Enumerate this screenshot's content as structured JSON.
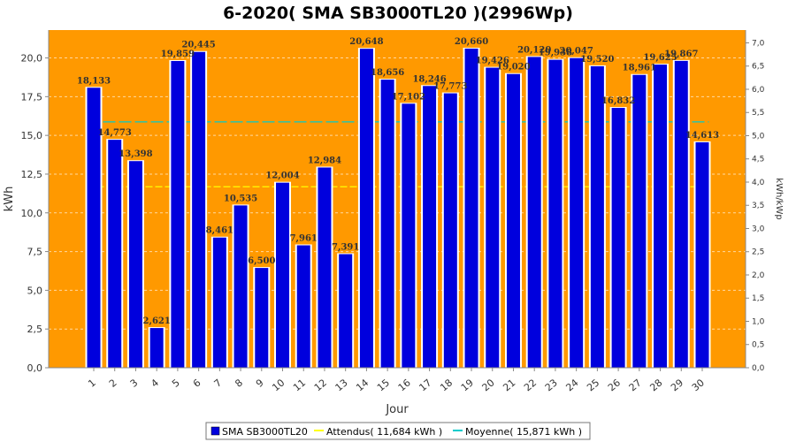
{
  "chart_data": {
    "type": "bar",
    "title": "6-2020( SMA SB3000TL20 )(2996Wp)",
    "xlabel": "Jour",
    "ylabel": "kWh",
    "ylabel_right": "kWh/kWp",
    "categories": [
      "1",
      "2",
      "3",
      "4",
      "5",
      "6",
      "7",
      "8",
      "9",
      "10",
      "11",
      "12",
      "13",
      "14",
      "15",
      "16",
      "17",
      "18",
      "19",
      "20",
      "21",
      "22",
      "23",
      "24",
      "25",
      "26",
      "27",
      "28",
      "29",
      "30"
    ],
    "series": [
      {
        "name": "SMA SB3000TL20",
        "color": "#0000dd",
        "values": [
          18.133,
          14.773,
          13.398,
          2.621,
          19.859,
          20.445,
          8.461,
          10.535,
          6.5,
          12.004,
          7.961,
          12.984,
          7.391,
          20.648,
          18.656,
          17.102,
          18.246,
          17.773,
          20.66,
          19.426,
          19.02,
          20.12,
          19.938,
          20.047,
          19.52,
          16.832,
          18.961,
          19.625,
          19.867,
          14.613
        ]
      }
    ],
    "labels": [
      "18,133",
      "14,773",
      "13,398",
      "2,621",
      "19,859",
      "20,445",
      "8,461",
      "10,535",
      "6,500",
      "12,004",
      "7,961",
      "12,984",
      "7,391",
      "20,648",
      "18,656",
      "17,102",
      "18,246",
      "17,773",
      "20,660",
      "19,426",
      "19,020",
      "20,120",
      "19,938",
      "20,047",
      "19,520",
      "16,832",
      "18,961",
      "19,625",
      "19,867",
      "14,613"
    ],
    "ylim": [
      0,
      21.8
    ],
    "yticks": [
      "0,0",
      "2,5",
      "5,0",
      "7,5",
      "10,0",
      "12,5",
      "15,0",
      "17,5",
      "20,0"
    ],
    "y2lim": [
      0,
      7.276
    ],
    "y2ticks": [
      "0,0",
      "0,5",
      "1,0",
      "1,5",
      "2,0",
      "2,5",
      "3,0",
      "3,5",
      "4,0",
      "4,5",
      "5,0",
      "5,5",
      "6,0",
      "6,5",
      "7,0"
    ],
    "reference_lines": [
      {
        "name": "Attendus",
        "value": 11.684,
        "color": "#ffff00",
        "legend": "Attendus( 11,684 kWh )"
      },
      {
        "name": "Moyenne",
        "value": 15.871,
        "color": "#00cccc",
        "legend": "Moyenne( 15,871 kWh )"
      }
    ],
    "legend_bar": "SMA SB3000TL20",
    "plot_background": "#ff9900",
    "grid": true,
    "legend_position": "bottom"
  }
}
